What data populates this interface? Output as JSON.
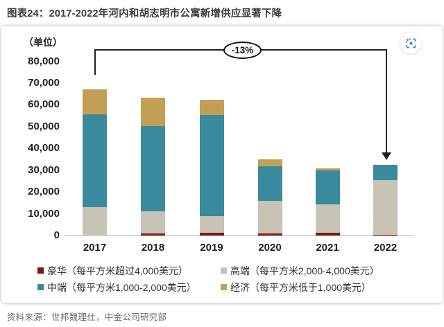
{
  "header": {
    "title": "图表24：2017-2022年河内和胡志明市公寓新增供应显著下降"
  },
  "footer": {
    "source": "资料来源：世邦魏理仕，中金公司研究部"
  },
  "toolbar": {
    "image_search_icon": "image-search-icon",
    "icon_color": "#4a7de0"
  },
  "chart_data": {
    "type": "bar",
    "stacked": true,
    "title": "图表24：2017-2022年河内和胡志明市公寓新增供应显著下降",
    "unit_label": "（单位）",
    "categories": [
      "2017",
      "2018",
      "2019",
      "2020",
      "2021",
      "2022"
    ],
    "series": [
      {
        "name": "豪华（每平方米超过4,000美元）",
        "color": "#821317",
        "values": [
          0,
          800,
          1200,
          800,
          1200,
          400
        ]
      },
      {
        "name": "高端（每平方米2,000-4,000美元）",
        "color": "#c7c3b5",
        "values": [
          13000,
          10400,
          7600,
          15200,
          13200,
          25100
        ]
      },
      {
        "name": "中端（每平方米1,000-2,000美元）",
        "color": "#3a8a9d",
        "values": [
          42800,
          39000,
          46500,
          15900,
          15600,
          7100
        ]
      },
      {
        "name": "经济（每平方米低于1,000美元）",
        "color": "#c29f55",
        "values": [
          11200,
          13000,
          6900,
          3000,
          1000,
          0
        ]
      }
    ],
    "totals": [
      67000,
      63200,
      62200,
      34900,
      31000,
      32600
    ],
    "ylim": [
      0,
      80000
    ],
    "yticks": [
      {
        "value": 80000,
        "label": "80,000"
      },
      {
        "value": 70000,
        "label": "70,000"
      },
      {
        "value": 60000,
        "label": "60,000"
      },
      {
        "value": 50000,
        "label": "50,000"
      },
      {
        "value": 40000,
        "label": "40,000"
      },
      {
        "value": 30000,
        "label": "30,000"
      },
      {
        "value": 20000,
        "label": "20,000"
      },
      {
        "value": 10000,
        "label": "10,000"
      },
      {
        "value": 0,
        "label": "0"
      }
    ],
    "grid": false,
    "legend_position": "bottom",
    "annotation": {
      "label": "-13%",
      "from": "2017",
      "to": "2022"
    }
  }
}
